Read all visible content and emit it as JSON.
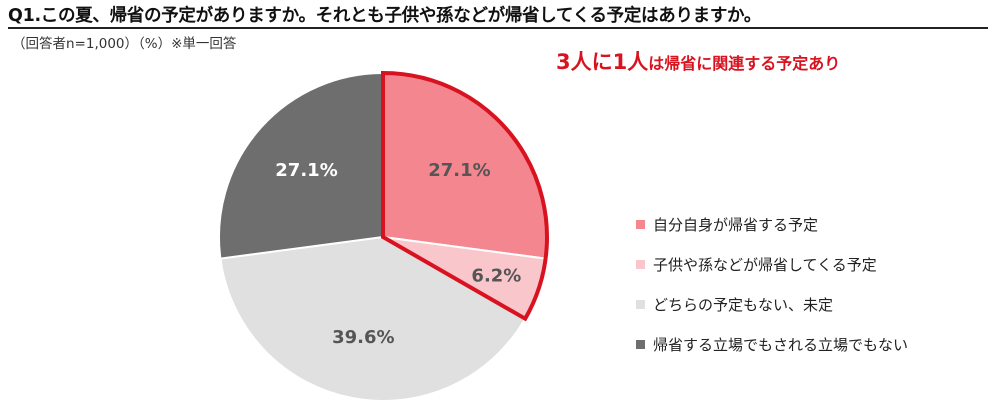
{
  "title": "Q1.この夏、帰省の予定がありますか。それとも子供や孫などが帰省してくる予定はありますか。",
  "subtitle": "（回答者n=1,000）（%）※単一回答",
  "headline": {
    "part1": "3人に1人",
    "part2": "は帰省に関連する予定あり"
  },
  "chart_data": {
    "type": "pie",
    "start": "12 o'clock, clockwise",
    "slices": [
      {
        "label": "自分自身が帰省する予定",
        "value": 27.1,
        "display": "27.1%",
        "color": "#f4868f",
        "text_color": "#555555",
        "highlight": true
      },
      {
        "label": "子供や孫などが帰省してくる予定",
        "value": 6.2,
        "display": "6.2%",
        "color": "#f9c6cb",
        "text_color": "#555555",
        "highlight": true
      },
      {
        "label": "どちらの予定もない、未定",
        "value": 39.6,
        "display": "39.6%",
        "color": "#e0e0e0",
        "text_color": "#555555",
        "highlight": false
      },
      {
        "label": "帰省する立場でもされる立場でもない",
        "value": 27.1,
        "display": "27.1%",
        "color": "#6e6e6e",
        "text_color": "#ffffff",
        "highlight": false
      }
    ],
    "highlight_color": "#d9121f",
    "legend_position": "right"
  }
}
